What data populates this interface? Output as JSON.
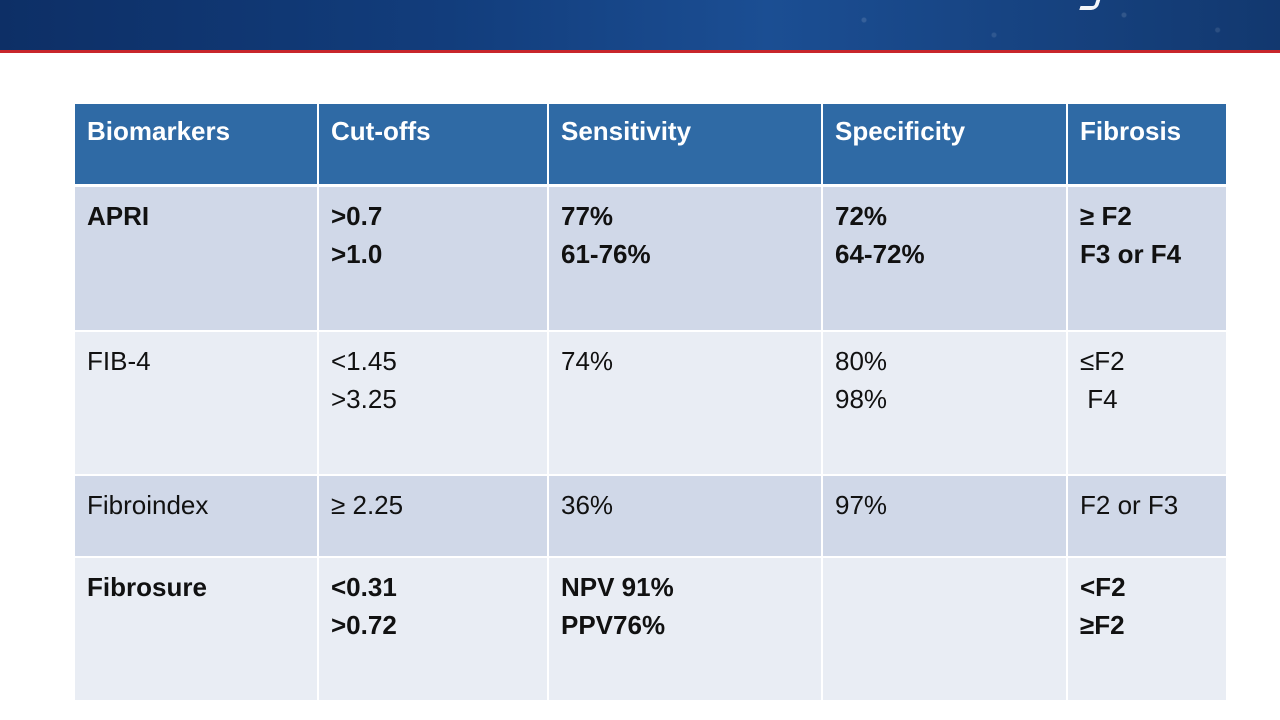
{
  "table": {
    "headers": [
      "Biomarkers",
      "Cut-offs",
      "Sensitivity",
      "Specificity",
      "Fibrosis"
    ],
    "rows": [
      {
        "biomarker": "APRI",
        "cutoffs": [
          ">0.7",
          ">1.0"
        ],
        "sensitivity": [
          "77%",
          "61-76%"
        ],
        "specificity": [
          "72%",
          "64-72%"
        ],
        "fibrosis": [
          "≥ F2",
          "F3 or F4"
        ]
      },
      {
        "biomarker": "FIB-4",
        "cutoffs": [
          "<1.45",
          ">3.25"
        ],
        "sensitivity": [
          "74%"
        ],
        "specificity": [
          "80%",
          "98%"
        ],
        "fibrosis": [
          "≤F2",
          " F4"
        ]
      },
      {
        "biomarker": "Fibroindex",
        "cutoffs": [
          "≥ 2.25"
        ],
        "sensitivity": [
          "36%"
        ],
        "specificity": [
          "97%"
        ],
        "fibrosis": [
          "F2 or F3"
        ]
      },
      {
        "biomarker": "Fibrosure",
        "cutoffs": [
          "<0.31",
          ">0.72"
        ],
        "sensitivity": [
          "NPV 91%",
          "PPV76%"
        ],
        "specificity": [],
        "fibrosis": [
          "<F2",
          "≥F2"
        ]
      }
    ]
  },
  "colors": {
    "header_band": "#123d7c",
    "header_rule": "#c8262b",
    "table_header": "#2f6aa5",
    "row_dark": "#d0d8e8",
    "row_light": "#e9edf4"
  }
}
